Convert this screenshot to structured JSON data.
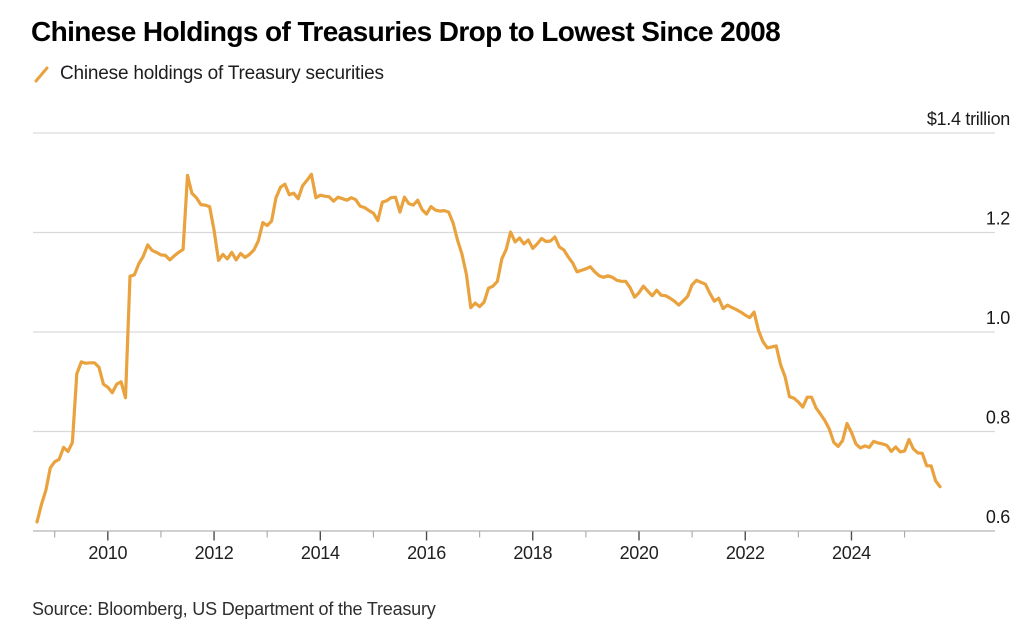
{
  "header": {
    "title": "Chinese Holdings of Treasuries Drop to Lowest Since 2008",
    "legend": {
      "label": "Chinese holdings of Treasury securities"
    }
  },
  "footer": {
    "source": "Source: Bloomberg, US Department of the Treasury"
  },
  "colors": {
    "line": "#E9A23D",
    "gridline": "#D9D9D9",
    "baseline": "#B3B3B3",
    "tick_major": "#4D4D4D",
    "tick_minor": "#A6A6A6",
    "axis_text": "#1A1A1A",
    "title_text": "#000000"
  },
  "chart_data": {
    "type": "line",
    "title": "Chinese Holdings of Treasuries Drop to Lowest Since 2008",
    "xlabel": "",
    "ylabel": "",
    "unit": "USD billions",
    "frequency": "monthly",
    "x_start": "2008-09",
    "x_end": "2025-09",
    "grid": "horizontal",
    "legend_position": "top-left",
    "y_axis": {
      "min": 600,
      "max": 1400,
      "ticks": [
        {
          "value": 1400,
          "label": "$1.4 trillion"
        },
        {
          "value": 1200,
          "label": "1.2"
        },
        {
          "value": 1000,
          "label": "1.0"
        },
        {
          "value": 800,
          "label": "0.8"
        },
        {
          "value": 600,
          "label": "0.6"
        }
      ]
    },
    "x_axis": {
      "tick_years": [
        2009,
        2010,
        2011,
        2012,
        2013,
        2014,
        2015,
        2016,
        2017,
        2018,
        2019,
        2020,
        2021,
        2022,
        2023,
        2024,
        2025
      ],
      "labeled_years": [
        2010,
        2012,
        2014,
        2016,
        2018,
        2020,
        2022,
        2024
      ]
    },
    "series": [
      {
        "name": "Chinese holdings of Treasury securities",
        "color": "#E9A23D",
        "values": [
          618,
          653,
          682,
          727,
          739,
          744,
          768,
          760,
          778,
          916,
          940,
          937,
          938,
          938,
          929,
          895,
          889,
          878,
          895,
          900,
          868,
          1112,
          1115,
          1137,
          1152,
          1175,
          1164,
          1160,
          1155,
          1154,
          1145,
          1153,
          1160,
          1166,
          1315,
          1279,
          1270,
          1256,
          1255,
          1252,
          1204,
          1144,
          1156,
          1147,
          1160,
          1145,
          1158,
          1150,
          1156,
          1165,
          1183,
          1220,
          1214,
          1223,
          1270,
          1291,
          1297,
          1276,
          1279,
          1268,
          1294,
          1305,
          1317,
          1270,
          1275,
          1273,
          1272,
          1263,
          1271,
          1268,
          1265,
          1270,
          1266,
          1253,
          1250,
          1244,
          1239,
          1224,
          1261,
          1264,
          1270,
          1271,
          1241,
          1271,
          1258,
          1255,
          1265,
          1246,
          1237,
          1252,
          1245,
          1243,
          1244,
          1241,
          1219,
          1185,
          1157,
          1116,
          1049,
          1058,
          1051,
          1060,
          1088,
          1092,
          1102,
          1147,
          1166,
          1201,
          1181,
          1189,
          1177,
          1185,
          1168,
          1177,
          1188,
          1182,
          1183,
          1191,
          1171,
          1165,
          1151,
          1139,
          1121,
          1124,
          1127,
          1131,
          1121,
          1113,
          1110,
          1113,
          1110,
          1104,
          1102,
          1102,
          1089,
          1070,
          1079,
          1092,
          1082,
          1073,
          1084,
          1074,
          1073,
          1068,
          1062,
          1054,
          1063,
          1072,
          1095,
          1104,
          1100,
          1096,
          1078,
          1062,
          1068,
          1047,
          1054,
          1049,
          1045,
          1040,
          1034,
          1029,
          1040,
          1003,
          981,
          968,
          970,
          972,
          934,
          910,
          870,
          867,
          859,
          849,
          869,
          869,
          847,
          835,
          822,
          805,
          778,
          770,
          782,
          816,
          798,
          775,
          767,
          771,
          768,
          780,
          777,
          775,
          772,
          760,
          769,
          759,
          761,
          784,
          765,
          757,
          756,
          731,
          731,
          701,
          689
        ]
      }
    ]
  }
}
